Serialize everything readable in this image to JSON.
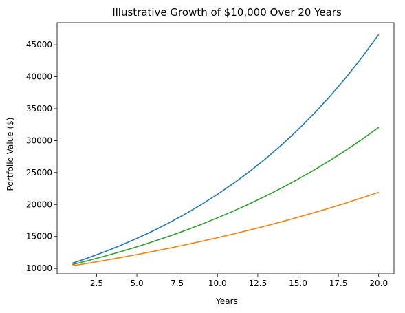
{
  "chart_data": {
    "type": "line",
    "title": "Illustrative Growth of $10,000 Over 20 Years",
    "xlabel": "Years",
    "ylabel": "Portfolio Value ($)",
    "xlim": [
      0.05,
      20.95
    ],
    "ylim": [
      9150,
      48460
    ],
    "x_ticks": [
      2.5,
      5.0,
      7.5,
      10.0,
      12.5,
      15.0,
      17.5,
      20.0
    ],
    "x_tick_labels": [
      "2.5",
      "5.0",
      "7.5",
      "10.0",
      "12.5",
      "15.0",
      "17.5",
      "20.0"
    ],
    "y_ticks": [
      10000,
      15000,
      20000,
      25000,
      30000,
      35000,
      40000,
      45000
    ],
    "y_tick_labels": [
      "10000",
      "15000",
      "20000",
      "25000",
      "30000",
      "35000",
      "40000",
      "45000"
    ],
    "grid": false,
    "x": [
      1,
      2,
      3,
      4,
      5,
      6,
      7,
      8,
      9,
      10,
      11,
      12,
      13,
      14,
      15,
      16,
      17,
      18,
      19,
      20
    ],
    "series": [
      {
        "color": "#1f77b4",
        "values": [
          10800,
          11664,
          12597,
          13605,
          14693,
          15869,
          17138,
          18509,
          19990,
          21589,
          23316,
          25182,
          27196,
          29372,
          31722,
          34259,
          37000,
          39960,
          43157,
          46610
        ]
      },
      {
        "color": "#ff7f0e",
        "values": [
          10400,
          10816,
          11249,
          11699,
          12167,
          12653,
          13159,
          13686,
          14233,
          14802,
          15395,
          16010,
          16651,
          17317,
          18009,
          18730,
          19479,
          20258,
          21068,
          21911
        ]
      },
      {
        "color": "#2ca02c",
        "values": [
          10600,
          11236,
          11910,
          12625,
          13382,
          14185,
          15036,
          15938,
          16895,
          17908,
          18983,
          20122,
          21329,
          22609,
          23966,
          25404,
          26928,
          28543,
          30256,
          32071
        ]
      }
    ]
  }
}
